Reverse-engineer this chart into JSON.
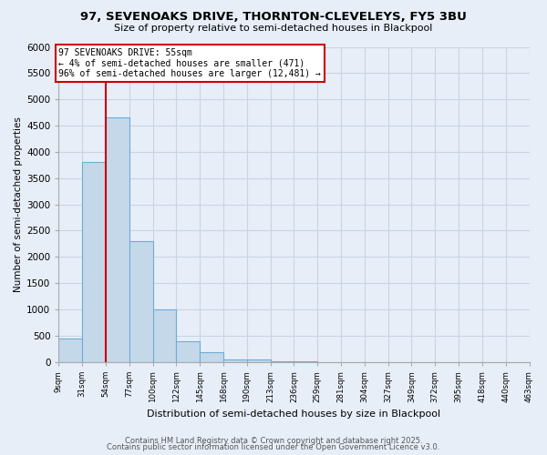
{
  "title": "97, SEVENOAKS DRIVE, THORNTON-CLEVELEYS, FY5 3BU",
  "subtitle": "Size of property relative to semi-detached houses in Blackpool",
  "xlabel": "Distribution of semi-detached houses by size in Blackpool",
  "ylabel": "Number of semi-detached properties",
  "bar_color": "#c5d8ea",
  "bar_edge_color": "#6aaed6",
  "bar_values": [
    450,
    3800,
    4650,
    2300,
    1000,
    400,
    180,
    50,
    50,
    10,
    5,
    2,
    1,
    0,
    0,
    0,
    0,
    0,
    0,
    0
  ],
  "bin_labels": [
    "9sqm",
    "31sqm",
    "54sqm",
    "77sqm",
    "100sqm",
    "122sqm",
    "145sqm",
    "168sqm",
    "190sqm",
    "213sqm",
    "236sqm",
    "259sqm",
    "281sqm",
    "304sqm",
    "327sqm",
    "349sqm",
    "372sqm",
    "395sqm",
    "418sqm",
    "440sqm",
    "463sqm"
  ],
  "ylim": [
    0,
    6000
  ],
  "yticks": [
    0,
    500,
    1000,
    1500,
    2000,
    2500,
    3000,
    3500,
    4000,
    4500,
    5000,
    5500,
    6000
  ],
  "property_bin_index": 1,
  "annotation_title": "97 SEVENOAKS DRIVE: 55sqm",
  "annotation_line1": "← 4% of semi-detached houses are smaller (471)",
  "annotation_line2": "96% of semi-detached houses are larger (12,481) →",
  "annotation_color": "#cc0000",
  "grid_color": "#c8d4e4",
  "bg_color": "#e8eef8",
  "footer1": "Contains HM Land Registry data © Crown copyright and database right 2025.",
  "footer2": "Contains public sector information licensed under the Open Government Licence v3.0."
}
